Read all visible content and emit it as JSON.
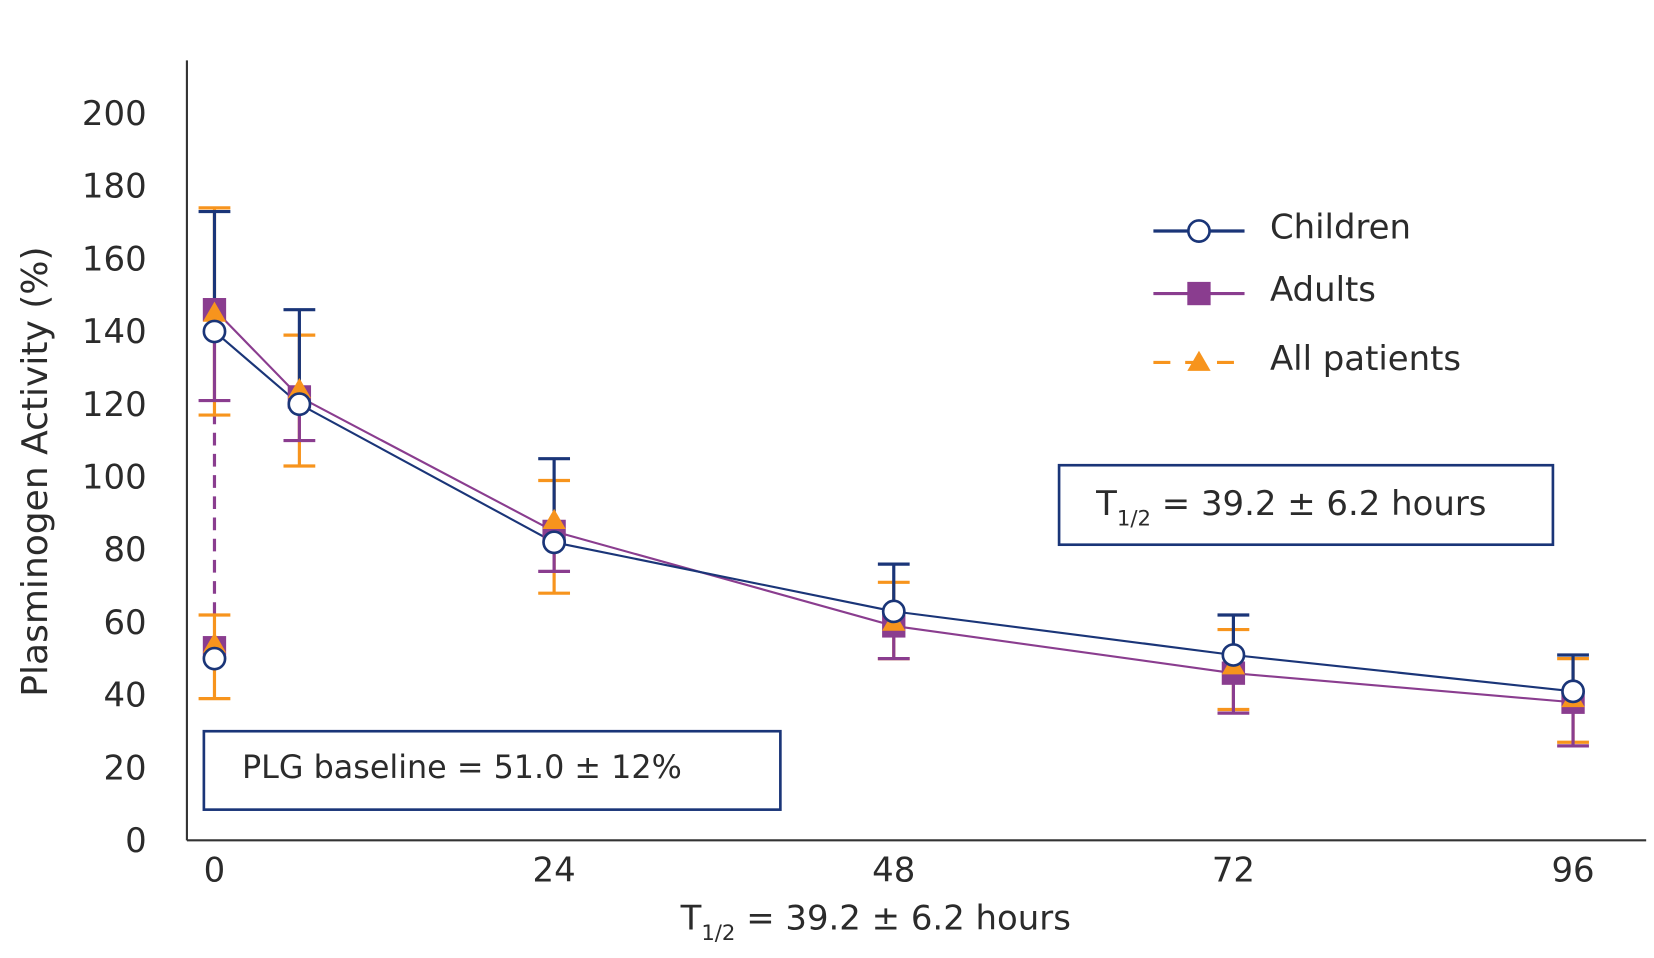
{
  "chart_data": {
    "type": "line",
    "xlabel": {
      "main": "T",
      "sub": "1/2",
      "rest": " = 39.2 ± 6.2 hours"
    },
    "ylabel": "Plasminogen Activity (%)",
    "xticks": [
      0,
      24,
      48,
      72,
      96
    ],
    "yticks": [
      0,
      20,
      40,
      60,
      80,
      100,
      120,
      140,
      160,
      180,
      200
    ],
    "xlim": [
      0,
      96
    ],
    "ylim": [
      0,
      200
    ],
    "grid": false,
    "legend_position": "top-right",
    "x": [
      0,
      0,
      6,
      24,
      48,
      72,
      96
    ],
    "series": [
      {
        "name": "Children",
        "color": "#1a3578",
        "marker": "open-circle",
        "line": "solid",
        "values": [
          50,
          140,
          120,
          82,
          63,
          51,
          41
        ],
        "err_upper": [
          null,
          173,
          146,
          105,
          76,
          62,
          51
        ],
        "err_lower": [
          null,
          null,
          null,
          null,
          null,
          null,
          null
        ]
      },
      {
        "name": "Adults",
        "color": "#8a3d8f",
        "marker": "square",
        "line": "solid",
        "values": [
          53,
          146,
          122,
          85,
          59,
          46,
          38
        ],
        "err_upper": [
          null,
          null,
          null,
          null,
          null,
          null,
          null
        ],
        "err_lower": [
          null,
          121,
          110,
          74,
          50,
          35,
          26
        ]
      },
      {
        "name": "All patients",
        "color": "#f7941d",
        "marker": "triangle",
        "line": "dashed",
        "values": [
          54,
          145,
          124,
          88,
          60,
          48,
          39
        ],
        "err_upper": [
          62,
          174,
          139,
          99,
          71,
          58,
          50
        ],
        "err_lower": [
          39,
          117,
          103,
          68,
          50,
          36,
          27
        ]
      }
    ],
    "annotations": {
      "half_life_box": {
        "main": "T",
        "sub": "1/2",
        "rest": " = 39.2 ± 6.2 hours"
      },
      "baseline_box": "PLG baseline = 51.0 ± 12%"
    },
    "box_border_color": "#1a3578"
  }
}
